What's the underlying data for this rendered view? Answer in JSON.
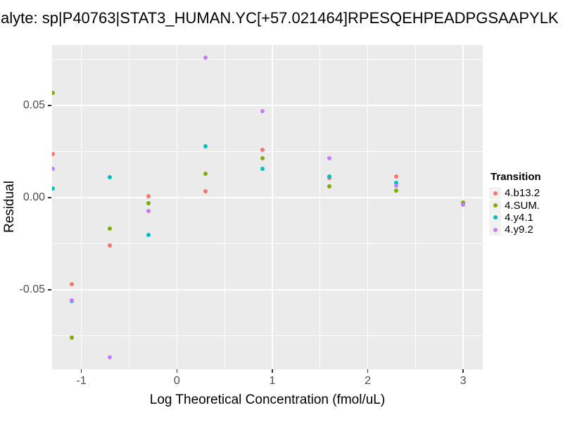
{
  "title": "alyte: sp|P40763|STAT3_HUMAN.YC[+57.021464]RPESQEHPEADPGSAAPYLK",
  "chart_data": {
    "type": "scatter",
    "title": "alyte: sp|P40763|STAT3_HUMAN.YC[+57.021464]RPESQEHPEADPGSAAPYLK",
    "xlabel": "Log Theoretical Concentration (fmol/uL)",
    "ylabel": "Residual",
    "xlim": [
      -1.307,
      3.205
    ],
    "ylim": [
      -0.0931,
      0.0828
    ],
    "grid": "white major and minor gridlines on gray panel",
    "x_ticks": {
      "values": [
        -1,
        0,
        1,
        2,
        3
      ],
      "labels": [
        "-1",
        "0",
        "1",
        "2",
        "3"
      ],
      "minor": [
        -0.5,
        0.5,
        1.5,
        2.5
      ]
    },
    "y_ticks": {
      "values": [
        0.05,
        0.0,
        -0.05
      ],
      "labels": [
        "0.05",
        "0.00",
        "-0.05"
      ],
      "minor": [
        0.075,
        0.025,
        -0.025,
        -0.075
      ]
    },
    "legend": {
      "title": "Transition",
      "position": "right"
    },
    "point_colors_note": "ggplot2 default 4-hue palette",
    "series": [
      {
        "name": "4.b13.2",
        "color": "#F8766D",
        "points": [
          [
            -1.3,
            0.0237
          ],
          [
            -1.1,
            -0.0471
          ],
          [
            -0.7,
            -0.0261
          ],
          [
            -0.3,
            0.0006
          ],
          [
            0.3,
            0.0036
          ],
          [
            0.9,
            0.0258
          ],
          [
            1.6,
            0.0105
          ],
          [
            2.3,
            0.0114
          ],
          [
            3.0,
            -0.0033
          ]
        ]
      },
      {
        "name": "4.SUM.",
        "color": "#7CAE00",
        "points": [
          [
            -1.3,
            0.0569
          ],
          [
            -1.1,
            -0.0758
          ],
          [
            -0.7,
            -0.0166
          ],
          [
            -0.3,
            -0.0032
          ],
          [
            0.3,
            0.0128
          ],
          [
            0.9,
            0.0212
          ],
          [
            1.6,
            0.0062
          ],
          [
            2.3,
            0.004
          ],
          [
            3.0,
            -0.0027
          ]
        ]
      },
      {
        "name": "4.y4.1",
        "color": "#00BFC4",
        "points": [
          [
            -1.3,
            0.005
          ],
          [
            -1.1,
            -0.0561
          ],
          [
            -0.7,
            0.0109
          ],
          [
            -0.3,
            -0.0204
          ],
          [
            0.3,
            0.0277
          ],
          [
            0.9,
            0.0158
          ],
          [
            1.6,
            0.0114
          ],
          [
            2.3,
            0.0082
          ],
          [
            3.0,
            -0.004
          ]
        ]
      },
      {
        "name": "4.y9.2",
        "color": "#C77CFF",
        "points": [
          [
            -1.3,
            0.0155
          ],
          [
            -1.1,
            -0.0557
          ],
          [
            -0.7,
            -0.0868
          ],
          [
            -0.3,
            -0.0072
          ],
          [
            0.3,
            0.0758
          ],
          [
            0.9,
            0.0471
          ],
          [
            1.6,
            0.0215
          ],
          [
            2.3,
            0.0065
          ],
          [
            3.0,
            -0.004
          ]
        ]
      }
    ]
  },
  "colors": {
    "panel_background": "#EBEBEB",
    "gridline": "#FFFFFF",
    "tick_text": "#4D4D4D",
    "tick_mark": "#333333",
    "legend_key_background": "#F2F2F2",
    "title_text": "#000000"
  }
}
